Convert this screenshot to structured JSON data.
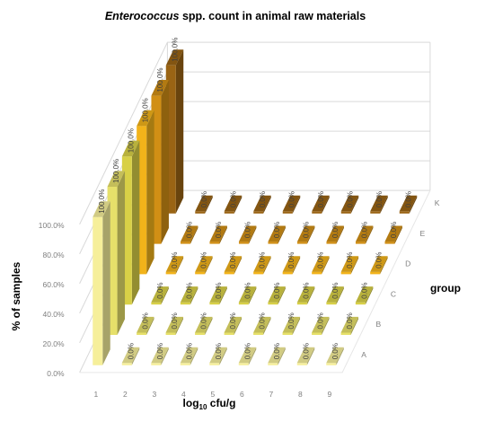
{
  "chart_data": {
    "type": "bar",
    "title_italic": "Enterococcus",
    "title_rest": " spp. count in animal raw materials",
    "xlabel_main": "log",
    "xlabel_sub": "10",
    "xlabel_rest": " cfu/g",
    "ylabel": "% of samples",
    "zlabel": "group",
    "ylim": [
      0,
      100
    ],
    "yticks": [
      "0.0%",
      "20.0%",
      "40.0%",
      "60.0%",
      "80.0%",
      "100.0%"
    ],
    "categories": [
      "1",
      "2",
      "3",
      "4",
      "5",
      "6",
      "7",
      "8",
      "9"
    ],
    "series": [
      {
        "name": "A",
        "color": "#f6ef9a",
        "values": [
          100,
          0,
          0,
          0,
          0,
          0,
          0,
          0,
          0
        ]
      },
      {
        "name": "B",
        "color": "#e6e06a",
        "values": [
          100,
          0,
          0,
          0,
          0,
          0,
          0,
          0,
          0
        ]
      },
      {
        "name": "C",
        "color": "#d8d047",
        "values": [
          100,
          0,
          0,
          0,
          0,
          0,
          0,
          0,
          0
        ]
      },
      {
        "name": "D",
        "color": "#f2b31a",
        "values": [
          100,
          0,
          0,
          0,
          0,
          0,
          0,
          0,
          0
        ]
      },
      {
        "name": "E",
        "color": "#d18f15",
        "values": [
          100,
          0,
          0,
          0,
          0,
          0,
          0,
          0,
          0
        ]
      },
      {
        "name": "K",
        "color": "#9a6414",
        "values": [
          100,
          0,
          0,
          0,
          0,
          0,
          0,
          0,
          0
        ]
      }
    ],
    "value_labels": [
      "0.0%",
      "100.0%"
    ],
    "grid": true,
    "legend": "none"
  }
}
